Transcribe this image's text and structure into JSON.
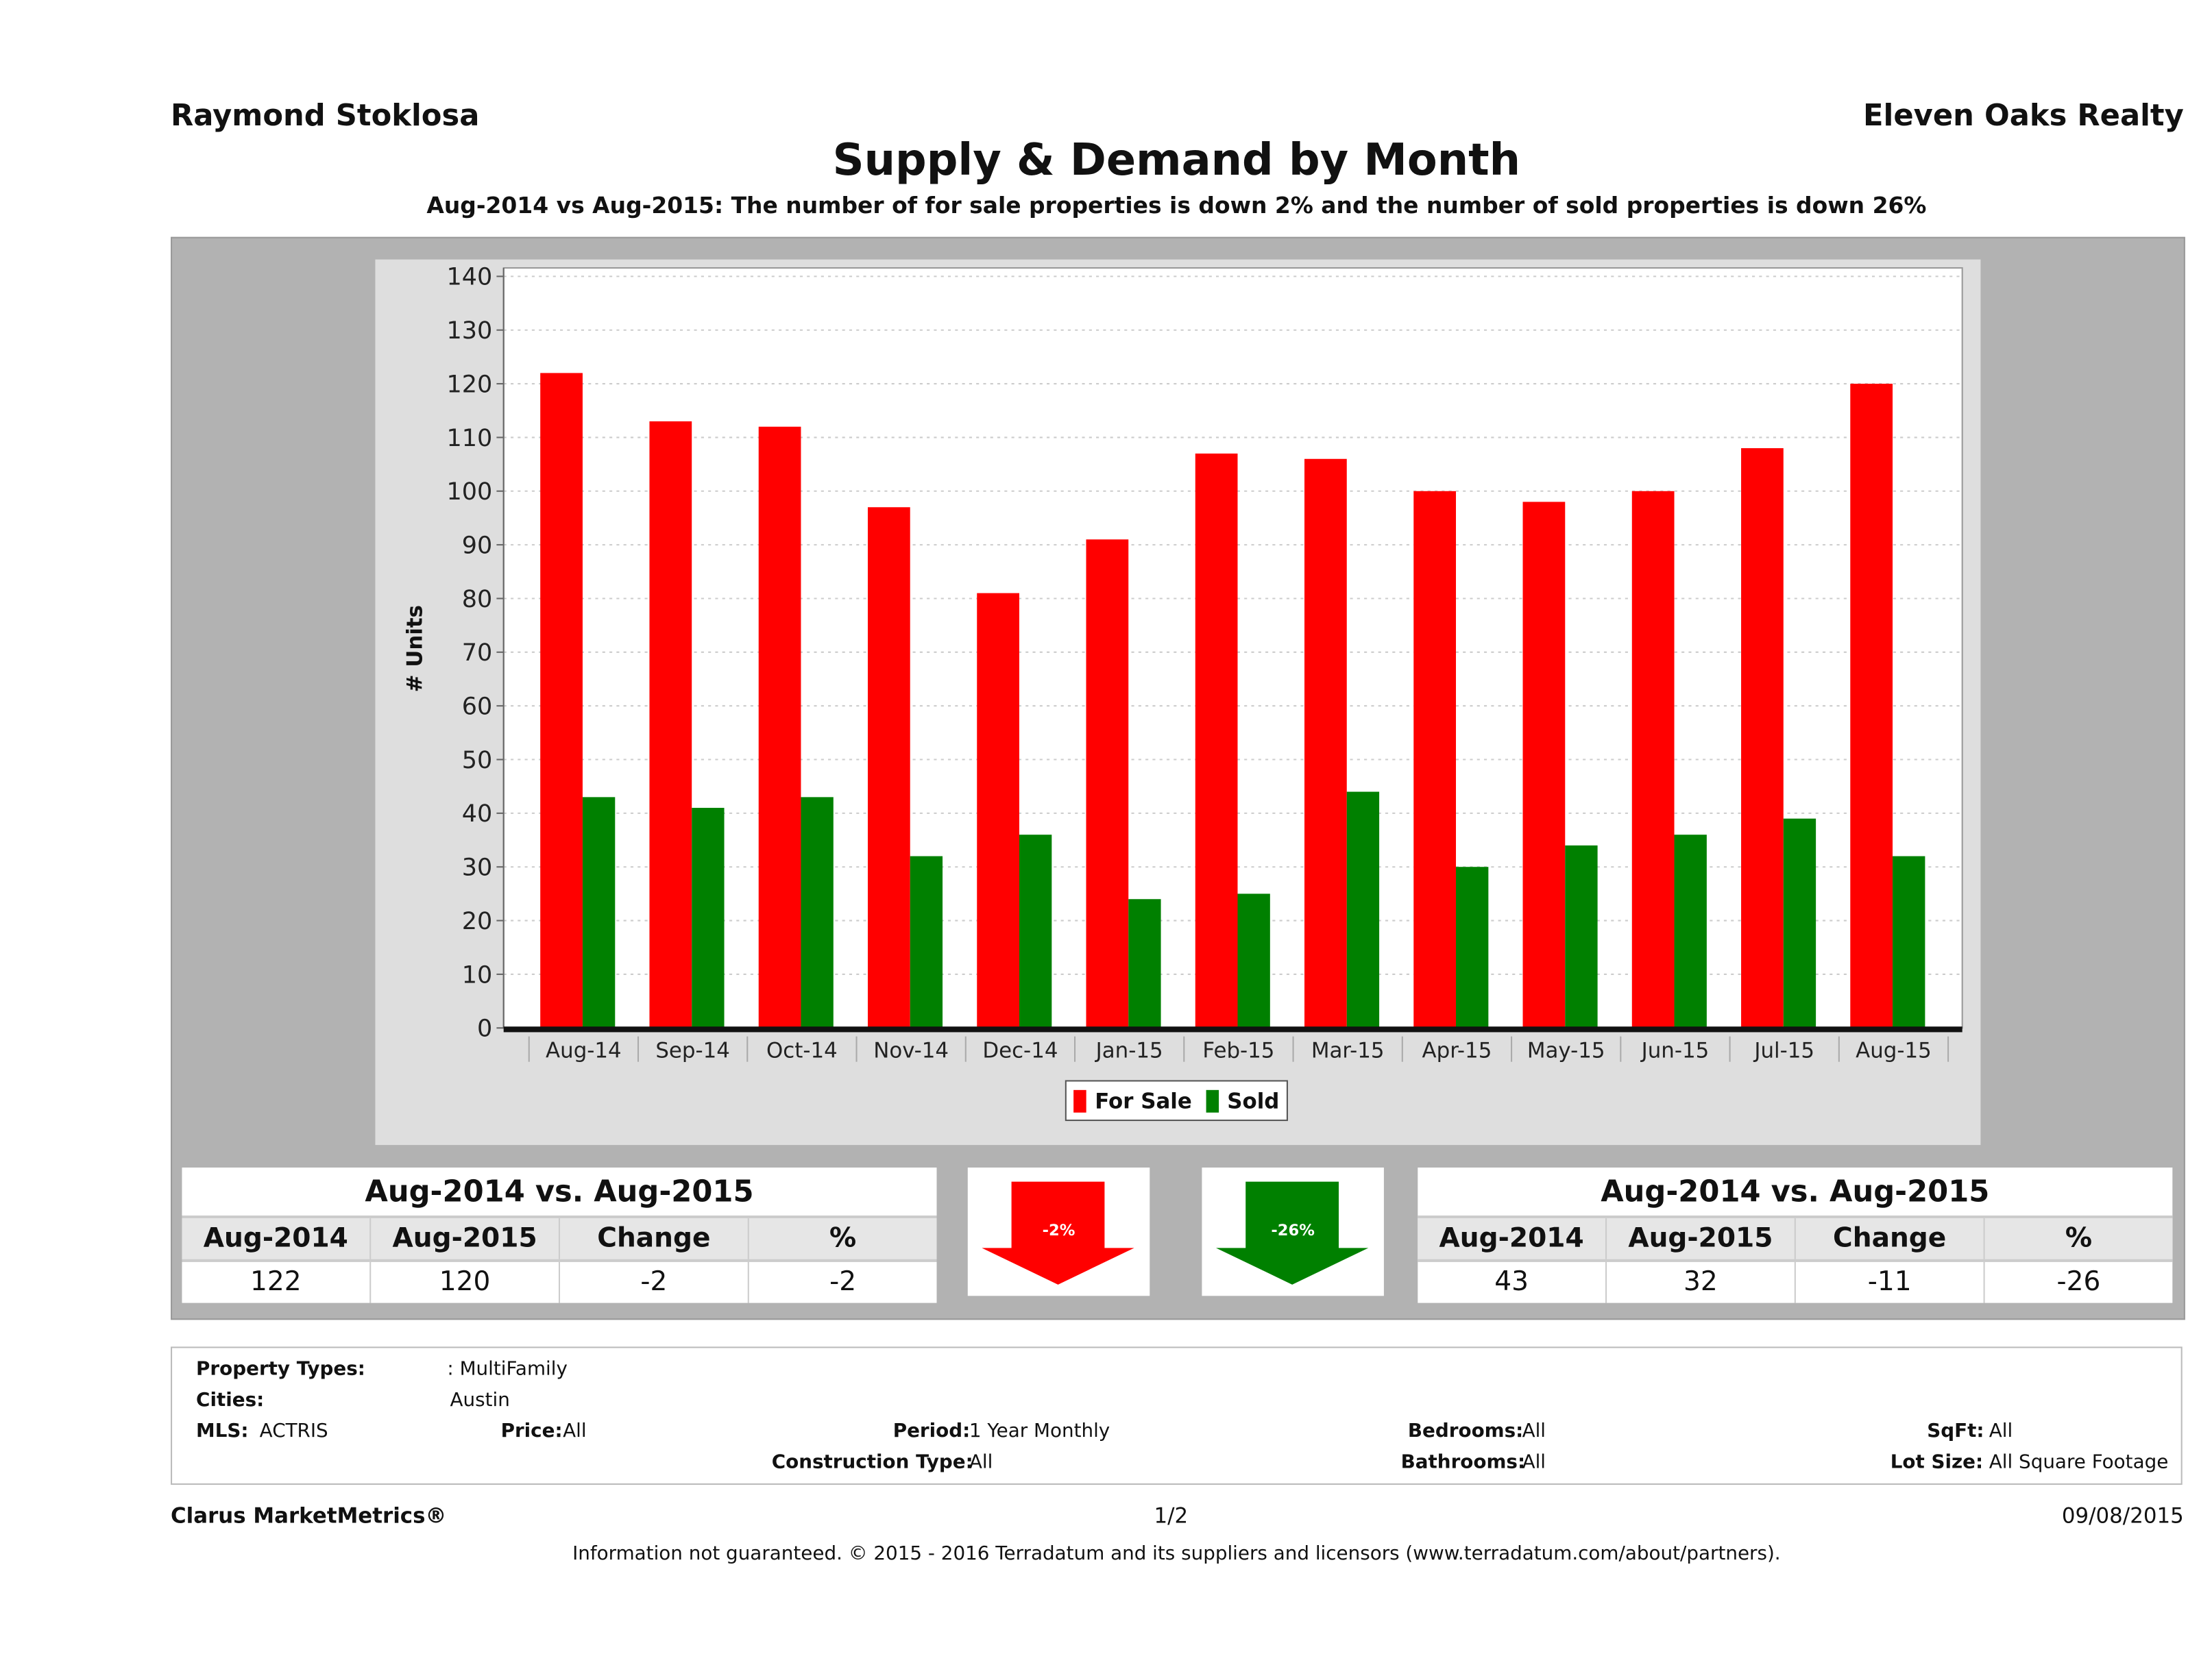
{
  "header": {
    "agent": "Raymond Stoklosa",
    "brokerage": "Eleven Oaks Realty"
  },
  "chart_data": {
    "type": "bar",
    "title": "Supply & Demand by Month",
    "subtitle": "Aug-2014 vs Aug-2015: The number of for sale properties is down 2% and the number of sold properties is down 26%",
    "xlabel": "",
    "ylabel": "# Units",
    "ylim": [
      0,
      140
    ],
    "yticks": [
      0,
      10,
      20,
      30,
      40,
      50,
      60,
      70,
      80,
      90,
      100,
      110,
      120,
      130,
      140
    ],
    "grid": true,
    "legend_position": "bottom",
    "categories": [
      "Aug-14",
      "Sep-14",
      "Oct-14",
      "Nov-14",
      "Dec-14",
      "Jan-15",
      "Feb-15",
      "Mar-15",
      "Apr-15",
      "May-15",
      "Jun-15",
      "Jul-15",
      "Aug-15"
    ],
    "series": [
      {
        "name": "For Sale",
        "color": "#ff0000",
        "values": [
          122,
          113,
          112,
          97,
          81,
          91,
          107,
          106,
          100,
          98,
          100,
          108,
          120
        ]
      },
      {
        "name": "Sold",
        "color": "#008000",
        "values": [
          43,
          41,
          43,
          32,
          36,
          24,
          25,
          44,
          30,
          34,
          36,
          39,
          32
        ]
      }
    ]
  },
  "for_sale_table": {
    "title": "Aug-2014 vs. Aug-2015",
    "headers": [
      "Aug-2014",
      "Aug-2015",
      "Change",
      "%"
    ],
    "values": [
      "122",
      "120",
      "-2",
      "-2"
    ],
    "arrow_label": "-2%",
    "arrow_color": "#ff0000",
    "arrow_direction": "down"
  },
  "sold_table": {
    "title": "Aug-2014 vs. Aug-2015",
    "headers": [
      "Aug-2014",
      "Aug-2015",
      "Change",
      "%"
    ],
    "values": [
      "43",
      "32",
      "-11",
      "-26"
    ],
    "arrow_label": "-26%",
    "arrow_color": "#008000",
    "arrow_direction": "down"
  },
  "filters": {
    "property_types_label": "Property Types:",
    "property_types": ": MultiFamily",
    "cities_label": "Cities:",
    "cities": "Austin",
    "mls_label": "MLS:",
    "mls": "ACTRIS",
    "price_label": "Price:",
    "price": "All",
    "period_label": "Period:",
    "period": "1 Year Monthly",
    "construction_label": "Construction Type:",
    "construction": "All",
    "bedrooms_label": "Bedrooms:",
    "bedrooms": "All",
    "bathrooms_label": "Bathrooms:",
    "bathrooms": "All",
    "sqft_label": "SqFt:",
    "sqft": "All",
    "lot_label": "Lot Size:",
    "lot": "All Square Footage"
  },
  "footer": {
    "product": "Clarus MarketMetrics®",
    "page": "1/2",
    "date": "09/08/2015",
    "disclaimer": "Information not guaranteed. © 2015 - 2016 Terradatum and its suppliers and licensors (www.terradatum.com/about/partners)."
  }
}
